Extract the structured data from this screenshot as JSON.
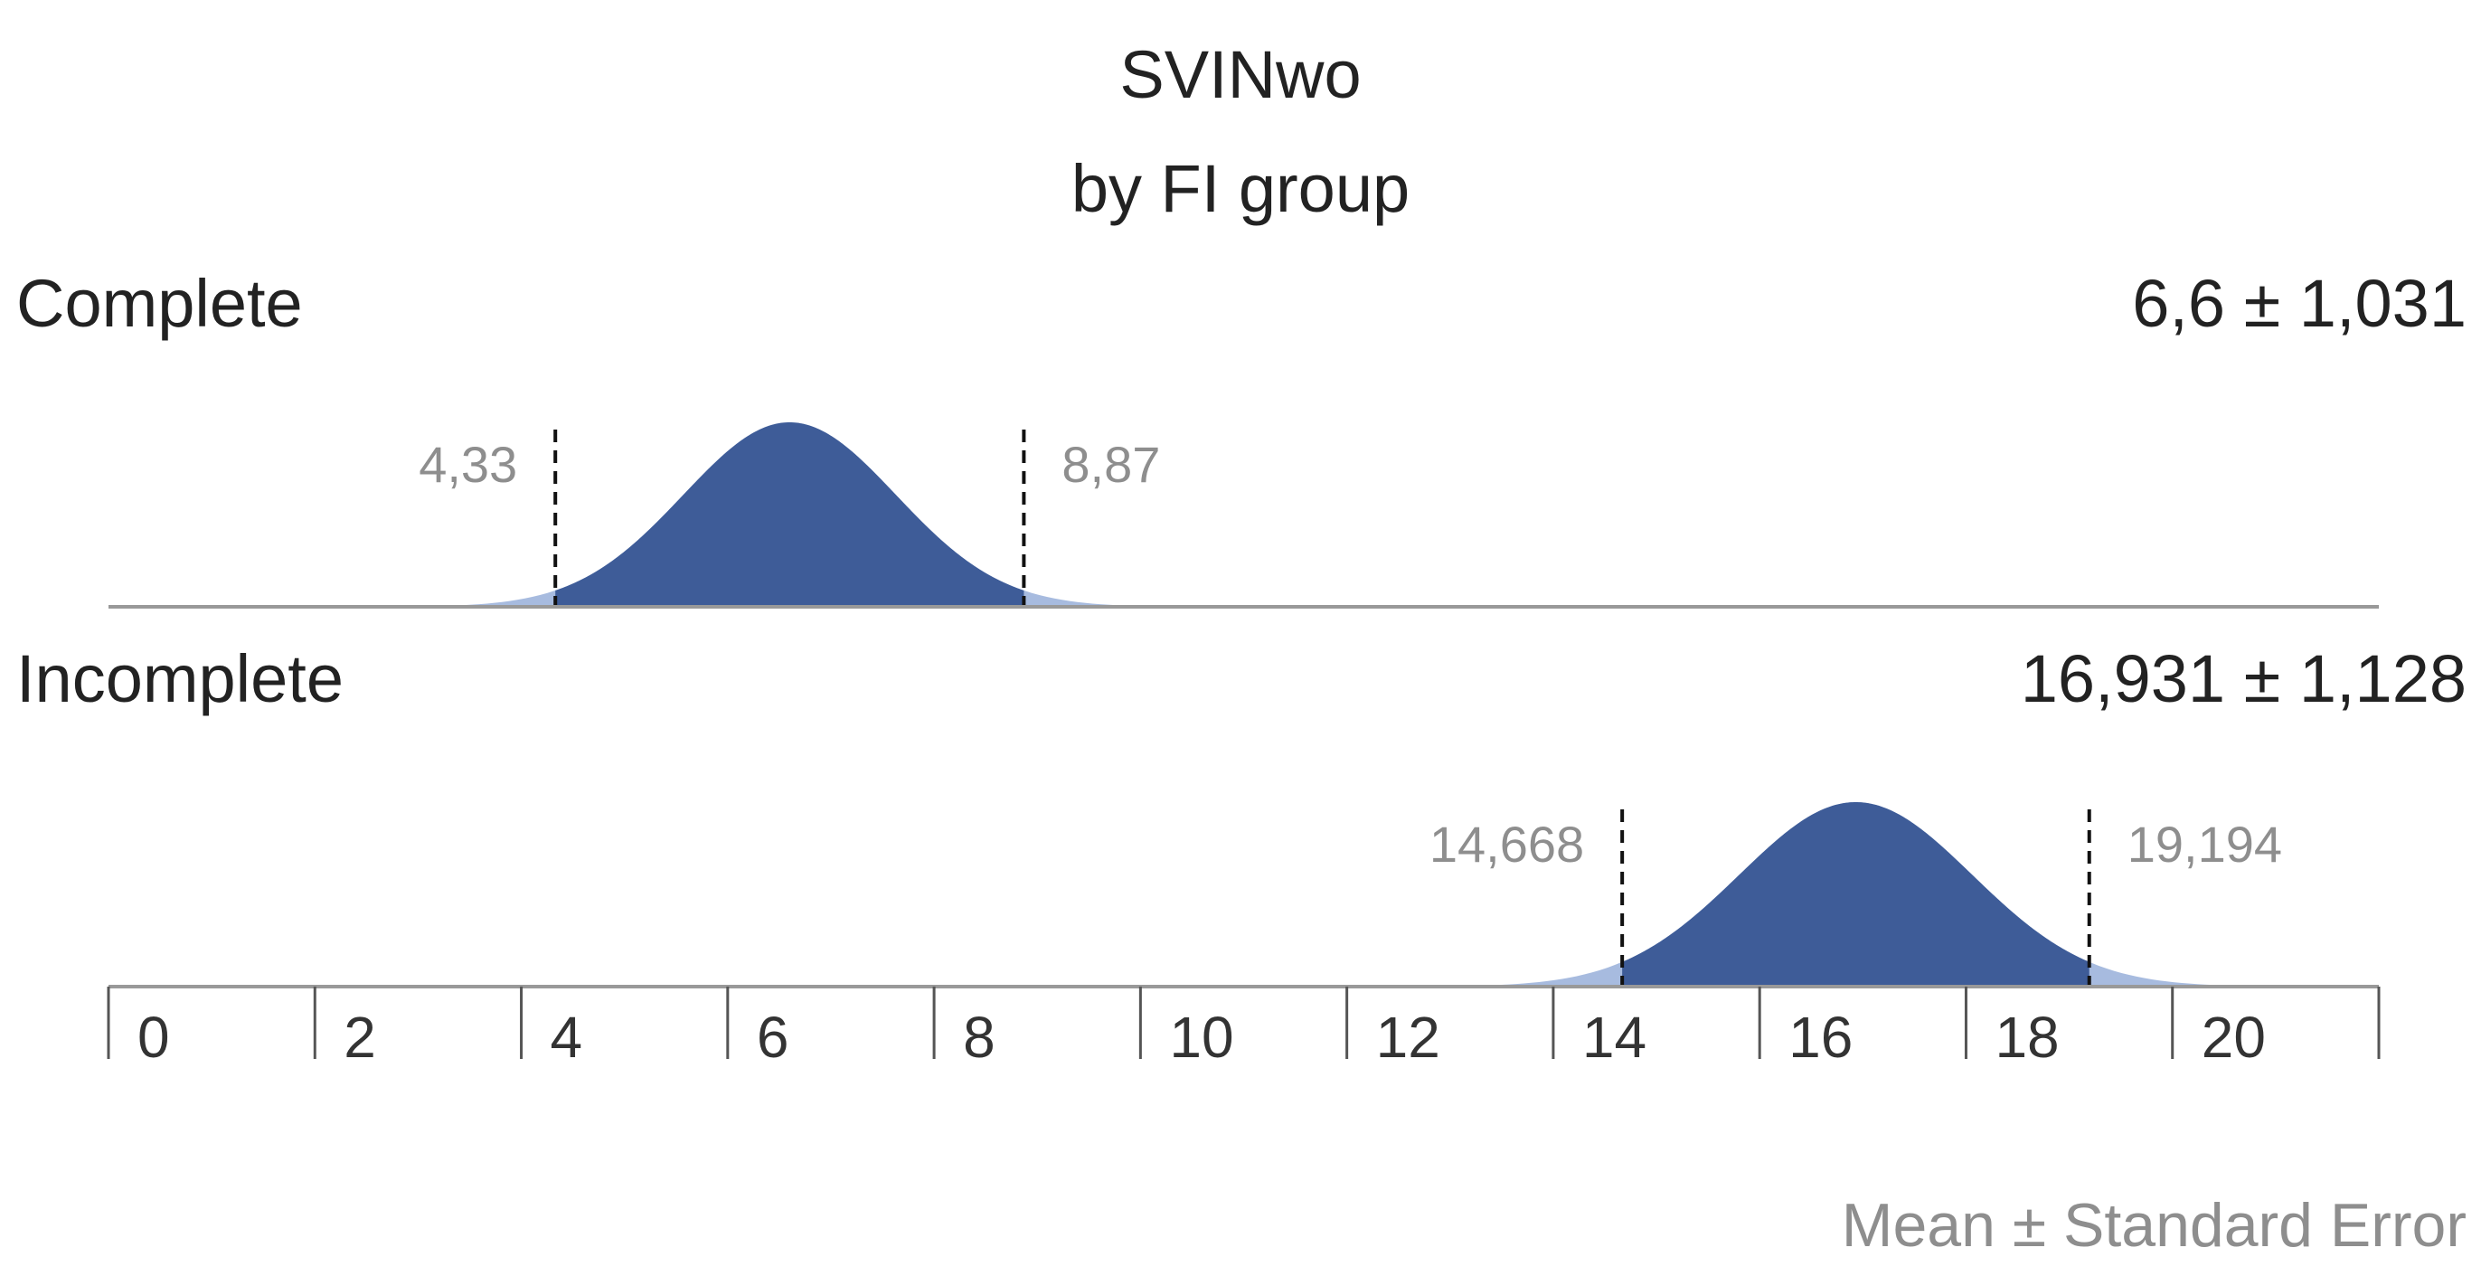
{
  "chart_data": {
    "type": "distribution",
    "title": "SVINwo",
    "subtitle": "by FI group",
    "xlim": [
      0,
      22
    ],
    "xticks": [
      0,
      2,
      4,
      6,
      8,
      10,
      12,
      14,
      16,
      18,
      20
    ],
    "dark_color": "#3e5c98",
    "light_color": "#a7bbdf",
    "groups": [
      {
        "name": "Complete",
        "mean": 6.6,
        "se": 1.031,
        "label": "6,6 ± 1,031",
        "lower": 4.33,
        "lower_label": "4,33",
        "upper": 8.87,
        "upper_label": "8,87"
      },
      {
        "name": "Incomplete",
        "mean": 16.931,
        "se": 1.128,
        "label": "16,931 ± 1,128",
        "lower": 14.668,
        "lower_label": "14,668",
        "upper": 19.194,
        "upper_label": "19,194"
      }
    ],
    "footnote": "Mean ± Standard Error"
  }
}
